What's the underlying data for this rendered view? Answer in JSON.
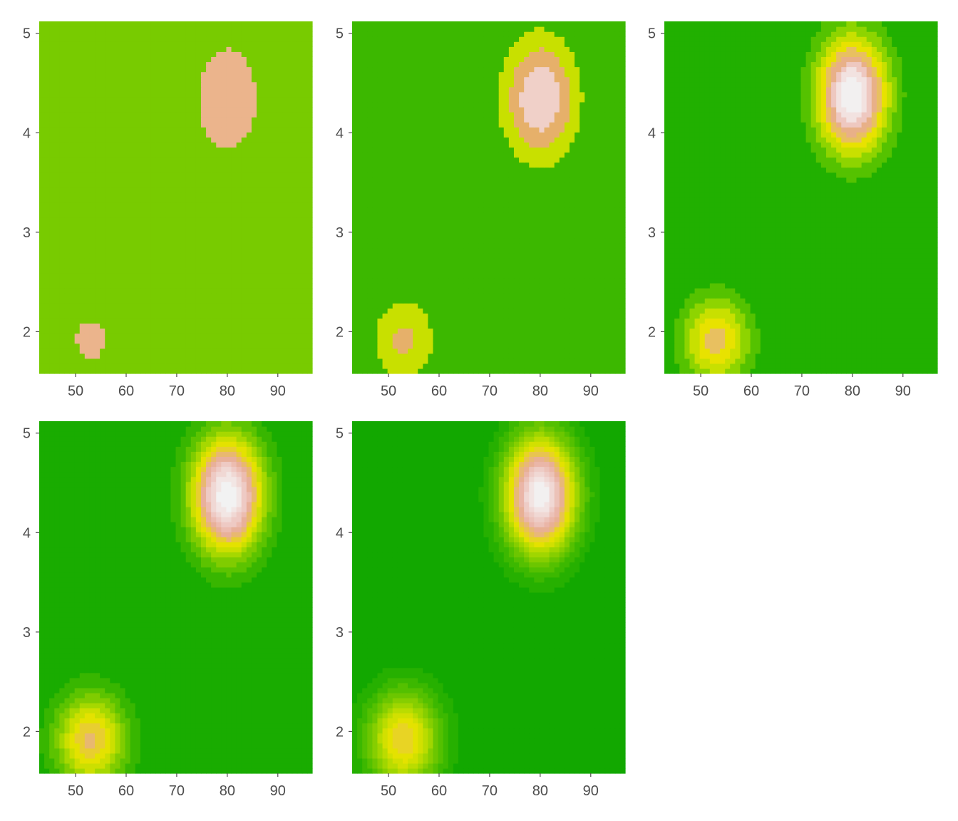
{
  "chart_data": [
    {
      "type": "heatmap",
      "title": "",
      "xlabel": "",
      "ylabel": "",
      "xlim": [
        42.8,
        96.8
      ],
      "ylim": [
        1.58,
        5.12
      ],
      "x_ticks": [
        50,
        60,
        70,
        80,
        90
      ],
      "y_ticks": [
        2,
        3,
        4,
        5
      ],
      "levels": 3,
      "palette": [
        "#78cb00",
        "#ebb48c"
      ],
      "peaks": [
        {
          "x": 80,
          "y": 4.35,
          "sx": 4.8,
          "sy": 0.42,
          "weight": 1.0
        },
        {
          "x": 53,
          "y": 1.92,
          "sx": 4.2,
          "sy": 0.28,
          "weight": 0.62
        }
      ]
    },
    {
      "type": "heatmap",
      "title": "",
      "xlabel": "",
      "ylabel": "",
      "xlim": [
        42.8,
        96.8
      ],
      "ylim": [
        1.58,
        5.12
      ],
      "x_ticks": [
        50,
        60,
        70,
        80,
        90
      ],
      "y_ticks": [
        2,
        3,
        4,
        5
      ],
      "levels": 5,
      "palette": [
        "#3cb800",
        "#c8e000",
        "#e6b06a",
        "#f0d0c8"
      ],
      "peaks": [
        {
          "x": 80,
          "y": 4.35,
          "sx": 5.0,
          "sy": 0.42,
          "weight": 1.0
        },
        {
          "x": 53,
          "y": 1.92,
          "sx": 4.5,
          "sy": 0.3,
          "weight": 0.55
        }
      ]
    },
    {
      "type": "heatmap",
      "title": "",
      "xlabel": "",
      "ylabel": "",
      "xlim": [
        42.8,
        96.8
      ],
      "ylim": [
        1.58,
        5.12
      ],
      "x_ticks": [
        50,
        60,
        70,
        80,
        90
      ],
      "y_ticks": [
        2,
        3,
        4,
        5
      ],
      "levels": 10,
      "palette": [
        "#21b000",
        "#55c200",
        "#8ed400",
        "#c8e000",
        "#e8e200",
        "#e8c060",
        "#e8b088",
        "#eec8c0",
        "#f2e2e0",
        "#f2f0f0"
      ],
      "peaks": [
        {
          "x": 80,
          "y": 4.38,
          "sx": 4.8,
          "sy": 0.4,
          "weight": 1.0
        },
        {
          "x": 53,
          "y": 1.92,
          "sx": 4.6,
          "sy": 0.3,
          "weight": 0.55
        }
      ]
    },
    {
      "type": "heatmap",
      "title": "",
      "xlabel": "",
      "ylabel": "",
      "xlim": [
        42.8,
        96.8
      ],
      "ylim": [
        1.58,
        5.12
      ],
      "x_ticks": [
        50,
        60,
        70,
        80,
        90
      ],
      "y_ticks": [
        2,
        3,
        4,
        5
      ],
      "levels": 15,
      "palette": [
        "#19ac00",
        "#38b600",
        "#5cc300",
        "#80cc00",
        "#a6d800",
        "#ccdf00",
        "#e4e200",
        "#e8ce30",
        "#e8b870",
        "#e8b09a",
        "#ecbcb0",
        "#eecac4",
        "#f0d8d4",
        "#f2e6e4",
        "#f2f2f2"
      ],
      "peaks": [
        {
          "x": 80,
          "y": 4.38,
          "sx": 4.8,
          "sy": 0.4,
          "weight": 1.0
        },
        {
          "x": 53,
          "y": 1.92,
          "sx": 4.8,
          "sy": 0.32,
          "weight": 0.55
        }
      ]
    },
    {
      "type": "heatmap",
      "title": "",
      "xlabel": "",
      "ylabel": "",
      "xlim": [
        42.8,
        96.8
      ],
      "ylim": [
        1.58,
        5.12
      ],
      "x_ticks": [
        50,
        60,
        70,
        80,
        90
      ],
      "y_ticks": [
        2,
        3,
        4,
        5
      ],
      "levels": 20,
      "palette": [
        "#12a800",
        "#26b000",
        "#3cb800",
        "#54c000",
        "#6cc600",
        "#86ce00",
        "#a0d600",
        "#badc00",
        "#d2e000",
        "#e4e200",
        "#e8d424",
        "#e8c450",
        "#e8b878",
        "#e8b094",
        "#eab6a8",
        "#ecc2b8",
        "#eeccc6",
        "#f0d8d4",
        "#f2e4e2",
        "#f2f0f0"
      ],
      "peaks": [
        {
          "x": 80,
          "y": 4.38,
          "sx": 4.8,
          "sy": 0.4,
          "weight": 1.0
        },
        {
          "x": 53,
          "y": 1.92,
          "sx": 5.0,
          "sy": 0.34,
          "weight": 0.55
        }
      ]
    }
  ]
}
